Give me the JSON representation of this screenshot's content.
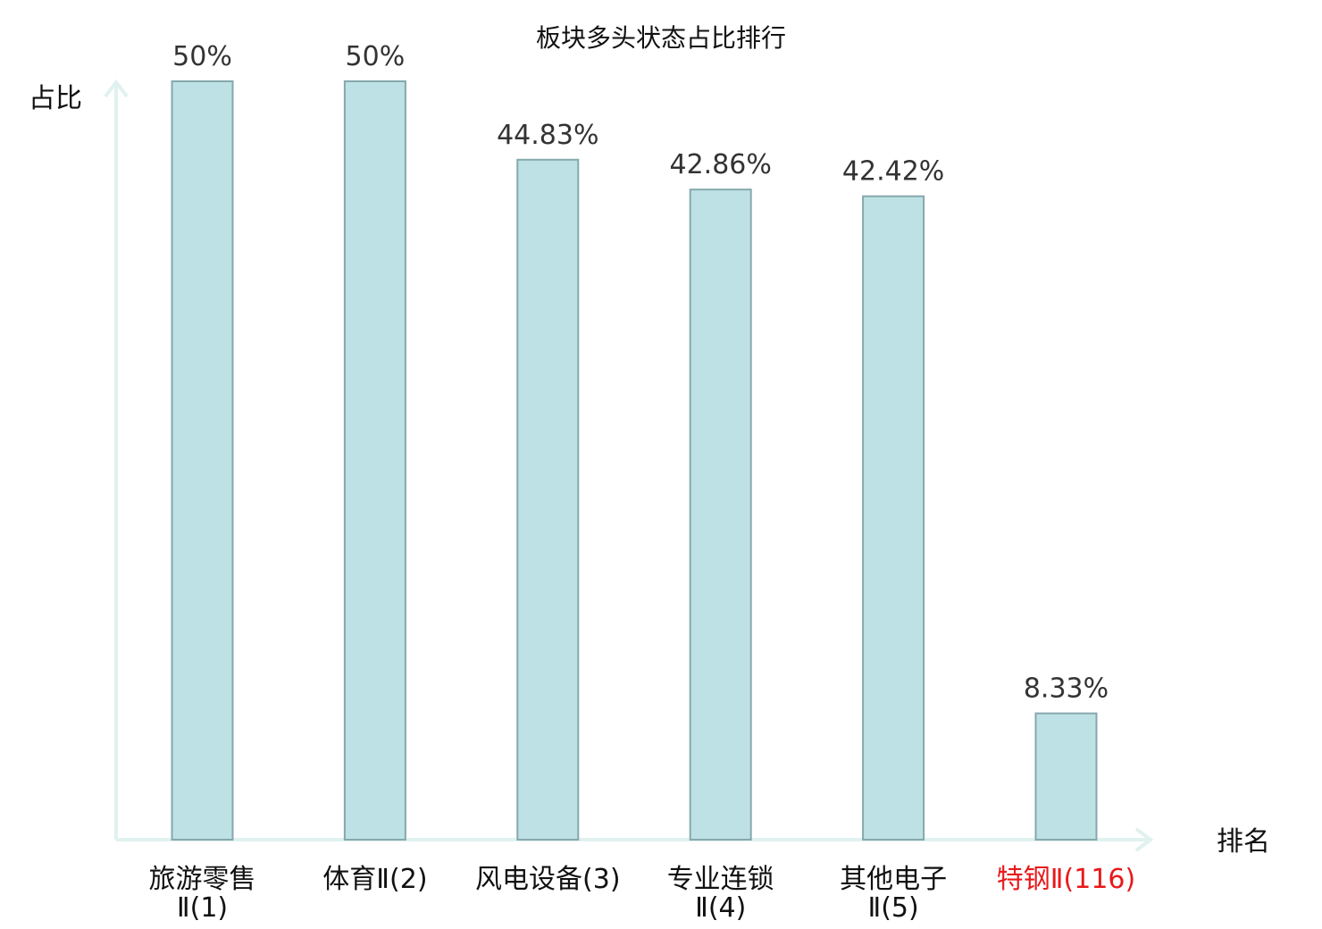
{
  "chart_data": {
    "type": "bar",
    "title": "板块多头状态占比排行",
    "ylabel": "占比",
    "xlabel": "排名",
    "ylim": [
      0,
      50
    ],
    "grid": false,
    "categories": [
      {
        "lines": [
          "旅游零售",
          "Ⅱ(1)"
        ],
        "highlight": false
      },
      {
        "lines": [
          "体育Ⅱ(2)"
        ],
        "highlight": false
      },
      {
        "lines": [
          "风电设备(3)"
        ],
        "highlight": false
      },
      {
        "lines": [
          "专业连锁",
          "Ⅱ(4)"
        ],
        "highlight": false
      },
      {
        "lines": [
          "其他电子",
          "Ⅱ(5)"
        ],
        "highlight": false
      },
      {
        "lines": [
          "特钢Ⅱ(116)"
        ],
        "highlight": true
      }
    ],
    "values": [
      50,
      50,
      44.83,
      42.86,
      42.42,
      8.33
    ],
    "value_labels": [
      "50%",
      "50%",
      "44.83%",
      "42.86%",
      "42.42%",
      "8.33%"
    ],
    "colors": {
      "bar_fill": "#bde1e4",
      "bar_stroke": "#86a8ac",
      "axis": "#e0f2ef",
      "highlight_text": "#e8191b"
    }
  }
}
